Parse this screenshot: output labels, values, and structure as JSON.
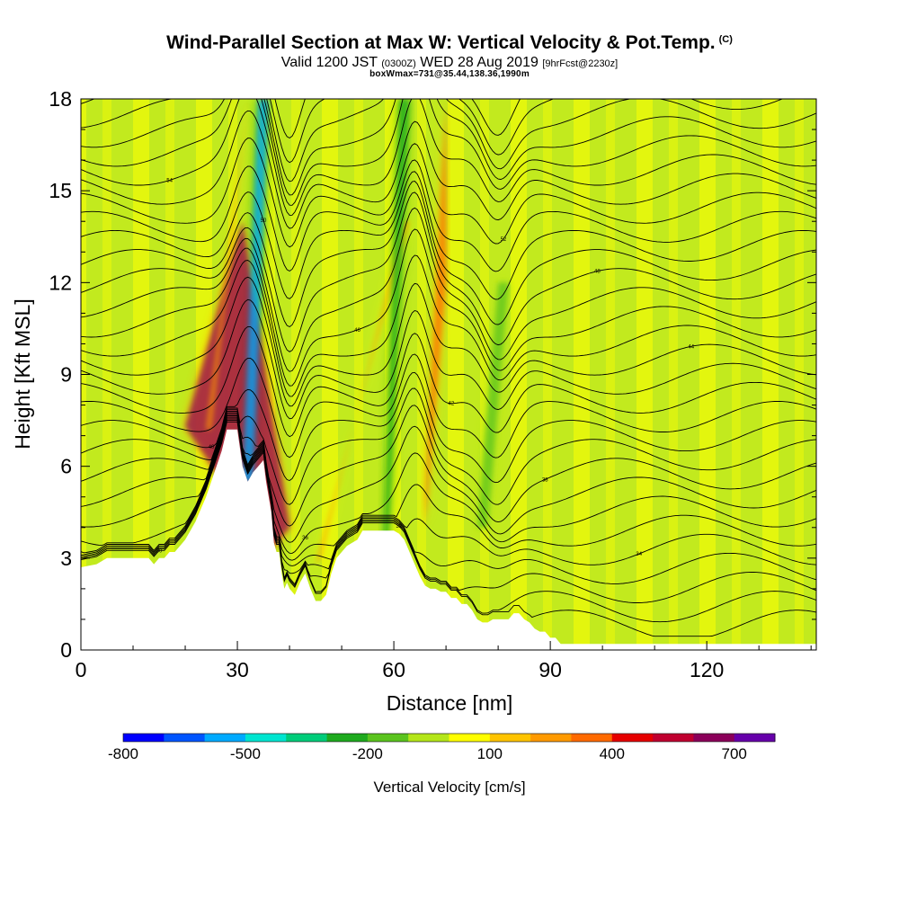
{
  "header": {
    "title": "Wind-Parallel Section at Max W: Vertical Velocity & Pot.Temp.",
    "copyright": "(C)",
    "valid_prefix": "Valid 1200 JST",
    "valid_utc": "(0300Z)",
    "valid_date": "WED 28 Aug 2019",
    "forecast": "[9hrFcst@2230z]",
    "box_info": "boxWmax=731@35.44,138.36,1990m"
  },
  "chart_data": {
    "type": "heatmap",
    "title": "Wind-Parallel Section at Max W: Vertical Velocity & Pot.Temp.",
    "xlabel": "Distance [nm]",
    "ylabel": "Height [Kft MSL]",
    "xlim": [
      0,
      141
    ],
    "ylim": [
      0,
      18
    ],
    "xticks": [
      0,
      30,
      60,
      90,
      120
    ],
    "yticks": [
      0,
      3,
      6,
      9,
      12,
      15,
      18
    ],
    "terrain": {
      "x": [
        0,
        3,
        5,
        7,
        9,
        11,
        12,
        13,
        14,
        15,
        16,
        17,
        18,
        19,
        20,
        21,
        22,
        23,
        24,
        25,
        26,
        27,
        28,
        29,
        30,
        31,
        32,
        33,
        34,
        35,
        35.5,
        36,
        36.5,
        37,
        37.5,
        38,
        38.5,
        39,
        39.5,
        40,
        41,
        42,
        43,
        44,
        45,
        46,
        47,
        48,
        49,
        50,
        51,
        52,
        53,
        54,
        55,
        56,
        57,
        58,
        59,
        60,
        61,
        62,
        63,
        64,
        65,
        66,
        67,
        68,
        69,
        70,
        71,
        72,
        73,
        74,
        75,
        76,
        77,
        78,
        79,
        80,
        81,
        82,
        83,
        84,
        85,
        86,
        87,
        88,
        89,
        90,
        91,
        92,
        93,
        141
      ],
      "h": [
        2.7,
        2.8,
        3.0,
        3.0,
        3.0,
        3.0,
        3.0,
        3.0,
        2.8,
        3.0,
        3.0,
        3.2,
        3.2,
        3.4,
        3.6,
        3.9,
        4.2,
        4.6,
        5.0,
        5.5,
        6.0,
        6.5,
        7.2,
        7.2,
        7.2,
        6.0,
        5.5,
        5.8,
        6.0,
        6.2,
        5.5,
        5.0,
        4.5,
        3.5,
        3.2,
        3.2,
        2.5,
        2.0,
        2.2,
        2.0,
        1.8,
        2.2,
        2.5,
        2.0,
        1.6,
        1.6,
        1.8,
        2.5,
        3.0,
        3.2,
        3.4,
        3.5,
        3.6,
        3.9,
        3.9,
        3.9,
        3.9,
        3.9,
        3.9,
        3.9,
        3.8,
        3.6,
        3.2,
        2.8,
        2.4,
        2.1,
        2.0,
        2.0,
        1.9,
        1.9,
        1.7,
        1.7,
        1.5,
        1.5,
        1.3,
        1.0,
        0.9,
        0.9,
        1.0,
        1.0,
        1.0,
        1.0,
        1.2,
        1.2,
        1.0,
        0.9,
        0.7,
        0.6,
        0.6,
        0.4,
        0.4,
        0.2,
        0.2,
        0.2
      ]
    },
    "updrafts": [
      {
        "x": [
          20,
          31,
          40,
          36
        ],
        "h": [
          7.3,
          14.0,
          4.0,
          3.2
        ],
        "value": 600
      },
      {
        "x": [
          66,
          70,
          70,
          66
        ],
        "h": [
          5.0,
          18.0,
          12.0,
          4.0
        ],
        "value": 300
      },
      {
        "x": [
          46,
          62,
          63,
          45
        ],
        "h": [
          3.0,
          14.0,
          14.0,
          2.8
        ],
        "value": 200
      },
      {
        "x": [
          54,
          60,
          60,
          54
        ],
        "h": [
          4.0,
          18.0,
          18.0,
          4.0
        ],
        "value": 150
      },
      {
        "x": [
          25,
          32,
          32,
          24
        ],
        "h": [
          7.2,
          18.0,
          18.0,
          7.2
        ],
        "value": 250
      }
    ],
    "downdrafts": [
      {
        "x": [
          33,
          36,
          34,
          31
        ],
        "h": [
          5.5,
          18.0,
          18.0,
          5.5
        ],
        "value": -600
      },
      {
        "x": [
          59,
          63,
          61,
          58
        ],
        "h": [
          3.5,
          18.0,
          18.0,
          3.5
        ],
        "value": -300
      },
      {
        "x": [
          78,
          82,
          80,
          76
        ],
        "h": [
          4.0,
          12.0,
          12.0,
          4.0
        ],
        "value": -200
      }
    ],
    "theta_contours": {
      "count": 30,
      "label_values": [
        30,
        32,
        34,
        36,
        38,
        40,
        42,
        44,
        46,
        48,
        50,
        52,
        54,
        56,
        58,
        60
      ]
    },
    "colorbar": {
      "title": "Vertical Velocity [cm/s]",
      "labels": [
        "-800",
        "-500",
        "-200",
        "100",
        "400",
        "700"
      ],
      "colors": [
        "#0000ff",
        "#0055ff",
        "#00aaff",
        "#00e5d0",
        "#00cc7a",
        "#1faa1f",
        "#5bc41f",
        "#b4e61a",
        "#ffff00",
        "#ffc400",
        "#ff9a00",
        "#ff6a00",
        "#e60000",
        "#c00030",
        "#8b005a",
        "#6600aa"
      ]
    }
  }
}
